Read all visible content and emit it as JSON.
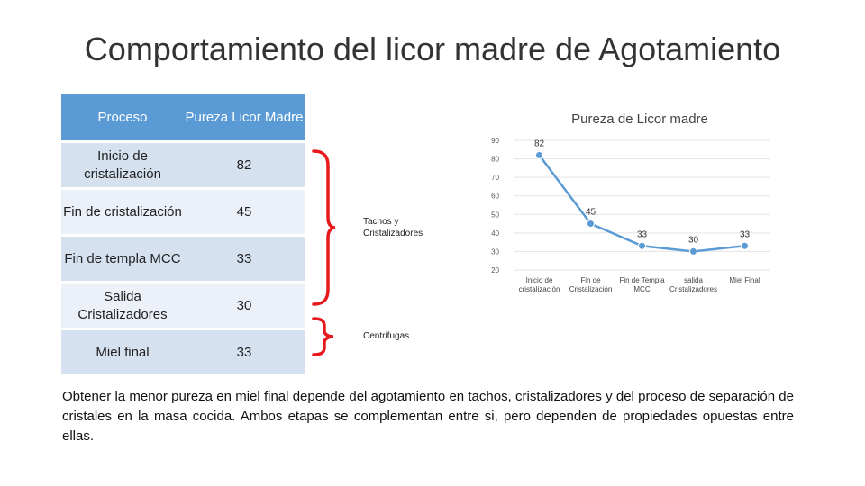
{
  "title": "Comportamiento del licor madre de Agotamiento",
  "table": {
    "headers": [
      "Proceso",
      "Pureza Licor Madre"
    ],
    "rows": [
      {
        "proceso": "Inicio de cristalización",
        "pureza": "82"
      },
      {
        "proceso": "Fin de cristalización",
        "pureza": "45"
      },
      {
        "proceso": "Fin de templa MCC",
        "pureza": "33"
      },
      {
        "proceso": "Salida Cristalizadores",
        "pureza": "30"
      },
      {
        "proceso": "Miel final",
        "pureza": "33"
      }
    ]
  },
  "brackets": {
    "tachos_label": "Tachos y Cristalizadores",
    "centrifugas_label": "Centrifugas",
    "color": "#e8191c"
  },
  "chart_data": {
    "type": "line",
    "title": "Pureza de Licor madre",
    "categories": [
      "Inicio de cristalización",
      "Fin de Cristalización",
      "Fin de Templa MCC",
      "salida Cristalizadores",
      "Miel Final"
    ],
    "values": [
      82,
      45,
      33,
      30,
      33
    ],
    "ylim": [
      20,
      90
    ],
    "yticks": [
      20,
      30,
      40,
      50,
      60,
      70,
      80,
      90
    ],
    "grid": true,
    "line_color": "#5b9bd5"
  },
  "paragraph": "Obtener la menor pureza en miel final depende del agotamiento en tachos, cristalizadores y del proceso de separación de cristales en la masa cocida. Ambos etapas se complementan entre si, pero dependen de propiedades opuestas entre ellas."
}
